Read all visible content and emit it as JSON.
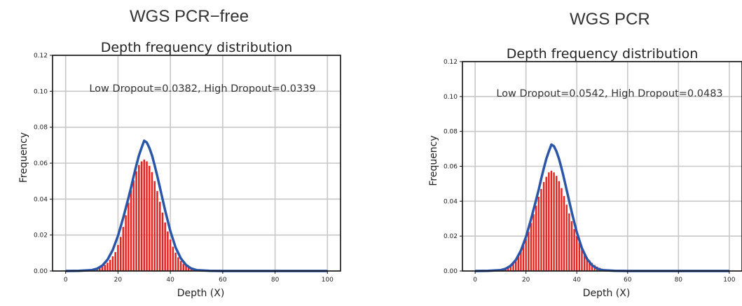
{
  "panels": [
    {
      "heading": "WGS PCR−free"
    },
    {
      "heading": "WGS PCR"
    }
  ],
  "chart_data": [
    {
      "type": "bar",
      "title": "Depth frequency distribution",
      "annotation": "Low Dropout=0.0382, High Dropout=0.0339",
      "xlabel": "Depth (X)",
      "ylabel": "Frequency",
      "xlim": [
        -5,
        105
      ],
      "ylim": [
        0,
        0.12
      ],
      "xticks": [
        0,
        20,
        40,
        60,
        80,
        100
      ],
      "yticks": [
        "0.00",
        "0.02",
        "0.04",
        "0.06",
        "0.08",
        "0.10",
        "0.12"
      ],
      "grid": true,
      "bar_color": "#e8231e",
      "line_color": "#2b56a8",
      "bar_series": {
        "x": [
          8,
          9,
          10,
          11,
          12,
          13,
          14,
          15,
          16,
          17,
          18,
          19,
          20,
          21,
          22,
          23,
          24,
          25,
          26,
          27,
          28,
          29,
          30,
          31,
          32,
          33,
          34,
          35,
          36,
          37,
          38,
          39,
          40,
          41,
          42,
          43,
          44,
          45,
          46,
          47,
          48,
          49,
          50,
          51,
          52,
          53,
          54,
          55
        ],
        "values": [
          0.0002,
          0.0003,
          0.0005,
          0.0008,
          0.0012,
          0.0017,
          0.0024,
          0.0034,
          0.0046,
          0.0062,
          0.0082,
          0.0105,
          0.0145,
          0.019,
          0.0245,
          0.031,
          0.038,
          0.045,
          0.0505,
          0.0555,
          0.059,
          0.061,
          0.062,
          0.061,
          0.0585,
          0.055,
          0.05,
          0.0445,
          0.0385,
          0.0325,
          0.027,
          0.022,
          0.0175,
          0.0135,
          0.0102,
          0.0076,
          0.0056,
          0.004,
          0.0028,
          0.0019,
          0.0013,
          0.0009,
          0.0006,
          0.0004,
          0.0003,
          0.0002,
          0.0001,
          0.0001
        ]
      },
      "line_series": {
        "x": [
          0,
          5,
          10,
          12,
          14,
          16,
          18,
          20,
          22,
          24,
          25,
          26,
          27,
          28,
          29,
          30,
          31,
          32,
          33,
          34,
          35,
          36,
          38,
          40,
          42,
          44,
          46,
          48,
          50,
          55,
          60,
          70,
          80,
          90,
          100
        ],
        "values": [
          0,
          0.0001,
          0.0005,
          0.0013,
          0.003,
          0.0063,
          0.0117,
          0.0196,
          0.0296,
          0.0408,
          0.0465,
          0.0528,
          0.0588,
          0.0643,
          0.0685,
          0.0725,
          0.0715,
          0.0685,
          0.0643,
          0.0588,
          0.0528,
          0.0465,
          0.0337,
          0.0222,
          0.0131,
          0.007,
          0.0033,
          0.0014,
          0.0005,
          0.0001,
          0,
          0,
          0,
          0,
          0
        ]
      }
    },
    {
      "type": "bar",
      "title": "Depth frequency distribution",
      "annotation": "Low Dropout=0.0542, High Dropout=0.0483",
      "xlabel": "Depth (X)",
      "ylabel": "Frequency",
      "xlim": [
        -5,
        105
      ],
      "ylim": [
        0,
        0.12
      ],
      "xticks": [
        0,
        20,
        40,
        60,
        80,
        100
      ],
      "yticks": [
        "0.00",
        "0.02",
        "0.04",
        "0.06",
        "0.08",
        "0.10",
        "0.12"
      ],
      "grid": true,
      "bar_color": "#e8231e",
      "line_color": "#2b56a8",
      "bar_series": {
        "x": [
          8,
          9,
          10,
          11,
          12,
          13,
          14,
          15,
          16,
          17,
          18,
          19,
          20,
          21,
          22,
          23,
          24,
          25,
          26,
          27,
          28,
          29,
          30,
          31,
          32,
          33,
          34,
          35,
          36,
          37,
          38,
          39,
          40,
          41,
          42,
          43,
          44,
          45,
          46,
          47,
          48,
          49,
          50,
          51,
          52,
          53,
          54,
          55
        ],
        "values": [
          0.0004,
          0.0006,
          0.0009,
          0.0013,
          0.0019,
          0.0027,
          0.0038,
          0.0052,
          0.007,
          0.0092,
          0.0118,
          0.0148,
          0.0185,
          0.0225,
          0.0275,
          0.0325,
          0.0375,
          0.0425,
          0.047,
          0.051,
          0.054,
          0.0565,
          0.0575,
          0.0565,
          0.0545,
          0.0515,
          0.0475,
          0.043,
          0.038,
          0.033,
          0.0285,
          0.024,
          0.02,
          0.0163,
          0.0131,
          0.0103,
          0.008,
          0.0061,
          0.0046,
          0.0034,
          0.0025,
          0.0018,
          0.0013,
          0.0009,
          0.0006,
          0.0004,
          0.0003,
          0.0002
        ]
      },
      "line_series": {
        "x": [
          0,
          5,
          10,
          12,
          14,
          16,
          18,
          20,
          22,
          24,
          25,
          26,
          27,
          28,
          29,
          30,
          31,
          32,
          33,
          34,
          35,
          36,
          38,
          40,
          42,
          44,
          46,
          48,
          50,
          55,
          60,
          70,
          80,
          90,
          100
        ],
        "values": [
          0,
          0.0001,
          0.0005,
          0.0013,
          0.003,
          0.0063,
          0.0117,
          0.0196,
          0.0296,
          0.0408,
          0.0465,
          0.0528,
          0.0588,
          0.0643,
          0.0685,
          0.0725,
          0.0715,
          0.0685,
          0.0643,
          0.0588,
          0.0528,
          0.0465,
          0.0337,
          0.0222,
          0.0131,
          0.007,
          0.0033,
          0.0014,
          0.0005,
          0.0001,
          0,
          0,
          0,
          0,
          0
        ]
      }
    }
  ]
}
